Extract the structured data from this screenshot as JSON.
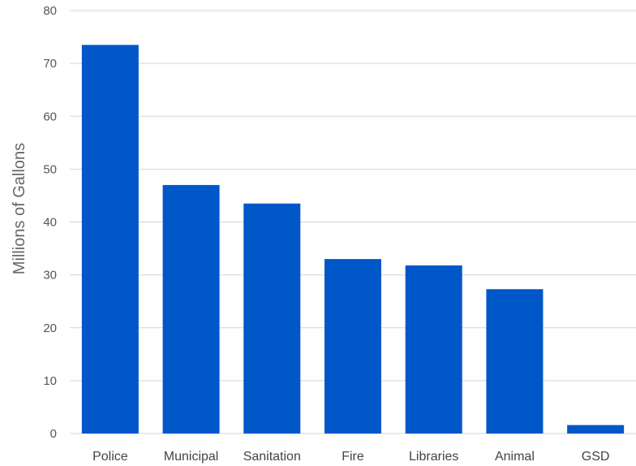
{
  "chart_data": {
    "type": "bar",
    "title": "",
    "xlabel": "",
    "ylabel": "Millions of Gallons",
    "ylim": [
      0,
      80
    ],
    "yticks": [
      0,
      10,
      20,
      30,
      40,
      50,
      60,
      70,
      80
    ],
    "grid": true,
    "legend": "none",
    "categories": [
      "Police",
      "Municipal",
      "Sanitation",
      "Fire",
      "Libraries",
      "Animal",
      "GSD"
    ],
    "values": [
      73.5,
      47,
      43.5,
      33,
      31.8,
      27.3,
      1.6
    ],
    "bar_color": "#0057c8",
    "grid_color": "#d4d4d4"
  }
}
